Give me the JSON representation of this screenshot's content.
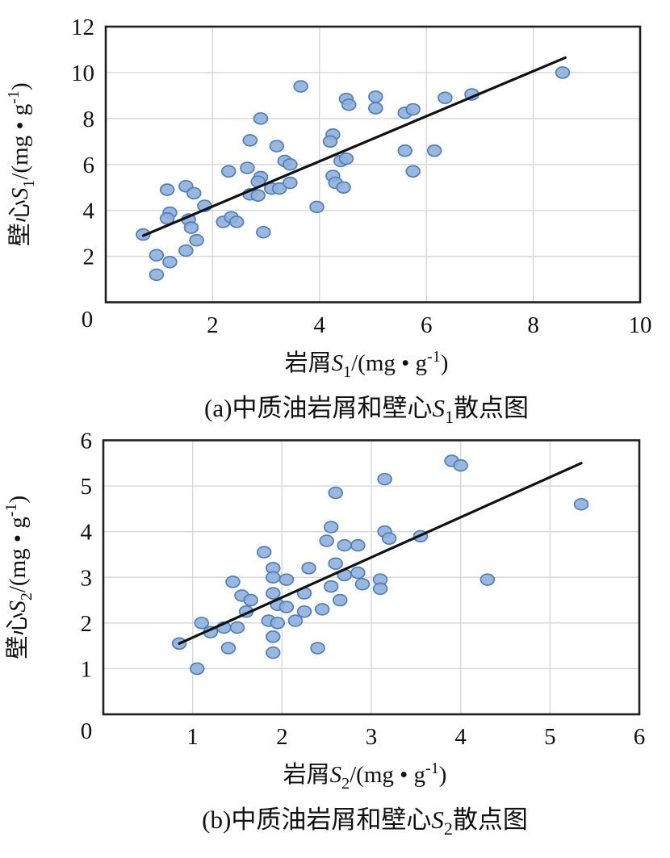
{
  "page": {
    "background": "#ffffff"
  },
  "theme": {
    "marker_fill": "#8FB0DC",
    "marker_stroke": "#4E7FBA",
    "grid_color": "#D9D9D9",
    "axis_color": "#1F1F1F",
    "trend_color": "#111111",
    "text_color": "#111111"
  },
  "chart_data": [
    {
      "id": "a",
      "type": "scatter",
      "caption": "(a)中质油岩屑和壁心S₁散点图",
      "caption_parts": [
        {
          "t": "(a)中质油岩屑和壁心"
        },
        {
          "t": "S",
          "i": true
        },
        {
          "t": "1",
          "sub": true
        },
        {
          "t": "散点图"
        }
      ],
      "xlabel": "岩屑S₁/(mg•g⁻¹)",
      "xlabel_parts": [
        {
          "t": "岩屑"
        },
        {
          "t": "S",
          "i": true
        },
        {
          "t": "1",
          "sub": true
        },
        {
          "t": "/(mg • g"
        },
        {
          "t": "-1",
          "sup": true
        },
        {
          "t": ")"
        }
      ],
      "ylabel": "壁心S₁/(mg•g⁻¹)",
      "ylabel_parts": [
        {
          "t": "壁心"
        },
        {
          "t": "S",
          "i": true
        },
        {
          "t": "1",
          "sub": true
        },
        {
          "t": "/(mg • g"
        },
        {
          "t": "-1",
          "sup": true
        },
        {
          "t": ")"
        }
      ],
      "xlim": [
        0,
        10
      ],
      "ylim": [
        0,
        12
      ],
      "xticks": [
        0,
        2,
        4,
        6,
        8,
        10
      ],
      "yticks": [
        0,
        2,
        4,
        6,
        8,
        10,
        12
      ],
      "corner_label": "0",
      "grid": true,
      "legend": "none",
      "points": [
        [
          0.7,
          2.95
        ],
        [
          0.95,
          1.2
        ],
        [
          0.95,
          2.05
        ],
        [
          1.2,
          1.75
        ],
        [
          1.15,
          4.9
        ],
        [
          1.5,
          5.05
        ],
        [
          1.65,
          4.75
        ],
        [
          1.2,
          3.9
        ],
        [
          1.15,
          3.65
        ],
        [
          1.55,
          3.6
        ],
        [
          1.6,
          3.25
        ],
        [
          1.5,
          2.25
        ],
        [
          1.7,
          2.7
        ],
        [
          1.85,
          4.2
        ],
        [
          2.2,
          3.5
        ],
        [
          2.35,
          3.7
        ],
        [
          2.45,
          3.5
        ],
        [
          2.3,
          5.7
        ],
        [
          2.65,
          5.85
        ],
        [
          2.7,
          7.05
        ],
        [
          2.9,
          8.0
        ],
        [
          2.9,
          5.45
        ],
        [
          2.85,
          5.25
        ],
        [
          2.95,
          3.05
        ],
        [
          2.7,
          4.7
        ],
        [
          2.85,
          4.65
        ],
        [
          3.1,
          4.95
        ],
        [
          3.25,
          4.95
        ],
        [
          3.45,
          5.2
        ],
        [
          3.35,
          6.15
        ],
        [
          3.45,
          6.0
        ],
        [
          3.2,
          6.8
        ],
        [
          3.65,
          9.4
        ],
        [
          3.95,
          4.15
        ],
        [
          4.25,
          7.3
        ],
        [
          4.2,
          7.0
        ],
        [
          4.4,
          6.15
        ],
        [
          4.5,
          6.25
        ],
        [
          4.25,
          5.5
        ],
        [
          4.3,
          5.2
        ],
        [
          4.45,
          5.0
        ],
        [
          4.5,
          8.85
        ],
        [
          4.55,
          8.6
        ],
        [
          5.05,
          8.95
        ],
        [
          5.05,
          8.45
        ],
        [
          5.6,
          8.25
        ],
        [
          5.75,
          8.4
        ],
        [
          6.35,
          8.9
        ],
        [
          6.85,
          9.05
        ],
        [
          5.6,
          6.6
        ],
        [
          6.15,
          6.6
        ],
        [
          5.75,
          5.7
        ],
        [
          8.55,
          10.0
        ]
      ],
      "trendline": {
        "x1": 0.7,
        "y1": 2.9,
        "x2": 8.6,
        "y2": 10.65
      }
    },
    {
      "id": "b",
      "type": "scatter",
      "caption": "(b)中质油岩屑和壁心S₂散点图",
      "caption_parts": [
        {
          "t": "(b)中质油岩屑和壁心"
        },
        {
          "t": "S",
          "i": true
        },
        {
          "t": "2",
          "sub": true
        },
        {
          "t": "散点图"
        }
      ],
      "xlabel": "岩屑S₂/(mg•g⁻¹)",
      "xlabel_parts": [
        {
          "t": "岩屑"
        },
        {
          "t": "S",
          "i": true
        },
        {
          "t": "2",
          "sub": true
        },
        {
          "t": "/(mg • g"
        },
        {
          "t": "-1",
          "sup": true
        },
        {
          "t": ")"
        }
      ],
      "ylabel": "壁心S₂/(mg•g⁻¹)",
      "ylabel_parts": [
        {
          "t": "壁心"
        },
        {
          "t": "S",
          "i": true
        },
        {
          "t": "2",
          "sub": true
        },
        {
          "t": "/(mg • g"
        },
        {
          "t": "-1",
          "sup": true
        },
        {
          "t": ")"
        }
      ],
      "xlim": [
        0,
        6
      ],
      "ylim": [
        0,
        6
      ],
      "xticks": [
        0,
        1,
        2,
        3,
        4,
        5,
        6
      ],
      "yticks": [
        0,
        1,
        2,
        3,
        4,
        5,
        6
      ],
      "corner_label": "0",
      "grid": true,
      "legend": "none",
      "points": [
        [
          0.85,
          1.55
        ],
        [
          1.05,
          1.0
        ],
        [
          1.1,
          2.0
        ],
        [
          1.2,
          1.8
        ],
        [
          1.35,
          1.9
        ],
        [
          1.5,
          1.9
        ],
        [
          1.4,
          1.45
        ],
        [
          1.45,
          2.9
        ],
        [
          1.55,
          2.6
        ],
        [
          1.65,
          2.5
        ],
        [
          1.6,
          2.25
        ],
        [
          1.8,
          3.55
        ],
        [
          1.9,
          3.2
        ],
        [
          1.9,
          3.0
        ],
        [
          2.05,
          2.95
        ],
        [
          1.9,
          2.65
        ],
        [
          1.85,
          2.05
        ],
        [
          1.95,
          2.0
        ],
        [
          1.9,
          1.7
        ],
        [
          1.9,
          1.35
        ],
        [
          1.95,
          2.4
        ],
        [
          2.05,
          2.35
        ],
        [
          2.15,
          2.05
        ],
        [
          2.25,
          2.25
        ],
        [
          2.45,
          2.3
        ],
        [
          2.3,
          3.2
        ],
        [
          2.25,
          2.65
        ],
        [
          2.4,
          1.45
        ],
        [
          2.55,
          2.8
        ],
        [
          2.55,
          4.1
        ],
        [
          2.5,
          3.8
        ],
        [
          2.7,
          3.7
        ],
        [
          2.85,
          3.7
        ],
        [
          2.6,
          4.85
        ],
        [
          2.6,
          3.3
        ],
        [
          2.7,
          3.05
        ],
        [
          2.85,
          3.1
        ],
        [
          2.65,
          2.5
        ],
        [
          2.9,
          2.85
        ],
        [
          3.1,
          2.95
        ],
        [
          3.1,
          2.75
        ],
        [
          3.15,
          4.0
        ],
        [
          3.2,
          3.85
        ],
        [
          3.15,
          5.15
        ],
        [
          3.55,
          3.9
        ],
        [
          3.9,
          5.55
        ],
        [
          4.0,
          5.45
        ],
        [
          4.3,
          2.95
        ],
        [
          5.35,
          4.6
        ]
      ],
      "trendline": {
        "x1": 0.85,
        "y1": 1.55,
        "x2": 5.35,
        "y2": 5.5
      }
    }
  ]
}
